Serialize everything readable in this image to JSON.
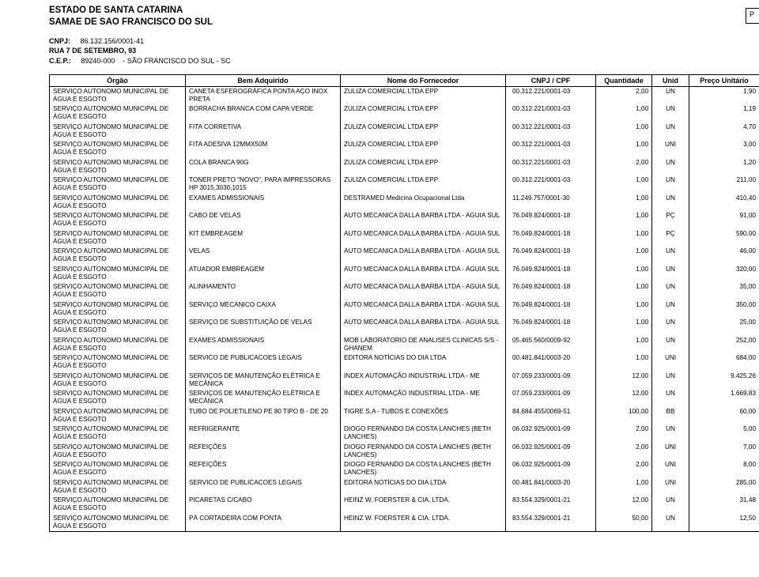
{
  "header": {
    "line1": "ESTADO DE SANTA CATARINA",
    "line2": "SAMAE DE SAO FRANCISCO DO SUL",
    "cnpj_label": "CNPJ:",
    "cnpj": "86.132.156/0001-41",
    "endereco": "RUA 7 DE SETEMBRO, 93",
    "cep_label": "C.E.P.:",
    "cep": "89240-000",
    "cidade": "- SÃO FRANCISCO DO SUL - SC",
    "page_marker": "P"
  },
  "columns": {
    "orgao": "Órgão",
    "bem": "Bem Adquirido",
    "fornecedor": "Nome do Fornecedor",
    "cnpj": "CNPJ / CPF",
    "quantidade": "Quantidade",
    "unid": "Unid",
    "preco": "Preço Unitário"
  },
  "orgao_text": "SERVIÇO AUTONOMO MUNICIPAL DE ÁGUA E ESGOTO",
  "rows": [
    {
      "bem": "CANETA ESFEROGRÁFICA PONTA AÇO INOX PRETA",
      "forn": "ZULIZA COMERCIAL LTDA EPP",
      "cnpj": "00.312.221/0001-03",
      "qtd": "2,00",
      "unid": "UN",
      "preco": "1,90"
    },
    {
      "bem": "BORRACHA BRANCA COM CAPA VERDE",
      "forn": "ZULIZA COMERCIAL LTDA EPP",
      "cnpj": "00.312.221/0001-03",
      "qtd": "1,00",
      "unid": "UN",
      "preco": "1,19"
    },
    {
      "bem": "FITA CORRETIVA",
      "forn": "ZULIZA COMERCIAL LTDA EPP",
      "cnpj": "00.312.221/0001-03",
      "qtd": "1,00",
      "unid": "UN",
      "preco": "4,70"
    },
    {
      "bem": "FITA ADESIVA 12MMX50M",
      "forn": "ZULIZA COMERCIAL LTDA EPP",
      "cnpj": "00.312.221/0001-03",
      "qtd": "1,00",
      "unid": "UNI",
      "preco": "3,00"
    },
    {
      "bem": "COLA BRANCA 90G",
      "forn": "ZULIZA COMERCIAL LTDA EPP",
      "cnpj": "00.312.221/0001-03",
      "qtd": "2,00",
      "unid": "UN",
      "preco": "1,20"
    },
    {
      "bem": "TONER PRETO \"NOVO\", PARA IMPRESSORAS HP 3015,3030,1015",
      "forn": "ZULIZA COMERCIAL LTDA EPP",
      "cnpj": "00.312.221/0001-03",
      "qtd": "1,00",
      "unid": "UN",
      "preco": "211,00"
    },
    {
      "bem": "EXAMES ADMISSIONAIS",
      "forn": "DESTRAMED Medicina Ocupacional Ltda",
      "cnpj": "11.249.757/0001-30",
      "qtd": "1,00",
      "unid": "UN",
      "preco": "410,40"
    },
    {
      "bem": "CABO DE VELAS",
      "forn": "AUTO MECANICA DALLA BARBA LTDA - AGUIA SUL",
      "cnpj": "76.049.824/0001-18",
      "qtd": "1,00",
      "unid": "PÇ",
      "preco": "91,00"
    },
    {
      "bem": "KIT EMBREAGEM",
      "forn": "AUTO MECANICA DALLA BARBA LTDA - AGUIA SUL",
      "cnpj": "76.049.824/0001-18",
      "qtd": "1,00",
      "unid": "PÇ",
      "preco": "590,00"
    },
    {
      "bem": "VELAS",
      "forn": "AUTO MECANICA DALLA BARBA LTDA - AGUIA SUL",
      "cnpj": "76.049.824/0001-18",
      "qtd": "1,00",
      "unid": "UN",
      "preco": "46,00"
    },
    {
      "bem": "ATUADOR EMBREAGEM",
      "forn": "AUTO MECANICA DALLA BARBA LTDA - AGUIA SUL",
      "cnpj": "76.049.824/0001-18",
      "qtd": "1,00",
      "unid": "UN",
      "preco": "320,00"
    },
    {
      "bem": "ALINHAMENTO",
      "forn": "AUTO MECANICA DALLA BARBA LTDA - AGUIA SUL",
      "cnpj": "76.049.824/0001-18",
      "qtd": "1,00",
      "unid": "UN",
      "preco": "35,00"
    },
    {
      "bem": "SERVIÇO MECANICO CAIXA",
      "forn": "AUTO MECANICA DALLA BARBA LTDA - AGUIA SUL",
      "cnpj": "76.049.824/0001-18",
      "qtd": "1,00",
      "unid": "UN",
      "preco": "350,00"
    },
    {
      "bem": "SERVIÇO DE SUBSTITUIÇÃO DE VELAS",
      "forn": "AUTO MECANICA DALLA BARBA LTDA - AGUIA SUL",
      "cnpj": "76.049.824/0001-18",
      "qtd": "1,00",
      "unid": "UN",
      "preco": "25,00"
    },
    {
      "bem": "EXAMES ADMISSIONAIS",
      "forn": "MOB LABORATORIO DE ANALISES CLINICAS S/S - GHANEM",
      "cnpj": "05.465.560/0009-92",
      "qtd": "1,00",
      "unid": "UN",
      "preco": "252,00"
    },
    {
      "bem": "SERVICO DE PUBLICACOES LEGAIS",
      "forn": "EDITORA NOTÍCIAS DO DIA LTDA",
      "cnpj": "00.481.841/0003-20",
      "qtd": "1,00",
      "unid": "UNI",
      "preco": "684,00"
    },
    {
      "bem": "SERVIÇOS DE MANUTENÇÃO ELÉTRICA E MECÂNICA",
      "forn": "INDEX AUTOMAÇÃO INDUSTRIAL LTDA - ME",
      "cnpj": "07.059.233/0001-09",
      "qtd": "12,00",
      "unid": "UN",
      "preco": "9.425,26"
    },
    {
      "bem": "SERVIÇOS DE MANUTENÇÃO ELÉTRICA E MECÂNICA",
      "forn": "INDEX AUTOMAÇÃO INDUSTRIAL LTDA - ME",
      "cnpj": "07.059.233/0001-09",
      "qtd": "12,00",
      "unid": "UN",
      "preco": "1.669,83"
    },
    {
      "bem": "TUBO DE POLIETILENO PE 80 TIPO B - DE 20",
      "forn": "TIGRE S.A - TUBOS E CONEXÕES",
      "cnpj": "84.684.455/0069-51",
      "qtd": "100,00",
      "unid": "BB",
      "preco": "60,00"
    },
    {
      "bem": "REFRIGERANTE",
      "forn": "DIOGO FERNANDO DA COSTA LANCHES (BETH LANCHES)",
      "cnpj": "06.032.925/0001-09",
      "qtd": "2,00",
      "unid": "UN",
      "preco": "5,00"
    },
    {
      "bem": "REFEIÇÕES",
      "forn": "DIOGO FERNANDO DA COSTA LANCHES (BETH LANCHES)",
      "cnpj": "06.032.925/0001-09",
      "qtd": "2,00",
      "unid": "UNI",
      "preco": "7,00"
    },
    {
      "bem": "REFEIÇÕES",
      "forn": "DIOGO FERNANDO DA COSTA LANCHES (BETH LANCHES)",
      "cnpj": "06.032.925/0001-09",
      "qtd": "2,00",
      "unid": "UNI",
      "preco": "8,00"
    },
    {
      "bem": "SERVICO DE PUBLICACOES LEGAIS",
      "forn": "EDITORA NOTÍCIAS DO DIA LTDA",
      "cnpj": "00.481.841/0003-20",
      "qtd": "1,00",
      "unid": "UNI",
      "preco": "285,00"
    },
    {
      "bem": "PICARETAS C/CABO",
      "forn": "HEINZ W. FOERSTER & CIA. LTDA.",
      "cnpj": "83.554.329/0001-21",
      "qtd": "12,00",
      "unid": "UN",
      "preco": "31,48"
    },
    {
      "bem": "PÁ CORTADEIRA COM PONTA",
      "forn": "HEINZ W. FOERSTER & CIA. LTDA.",
      "cnpj": "83.554.329/0001-21",
      "qtd": "50,00",
      "unid": "UN",
      "preco": "12,50"
    }
  ]
}
